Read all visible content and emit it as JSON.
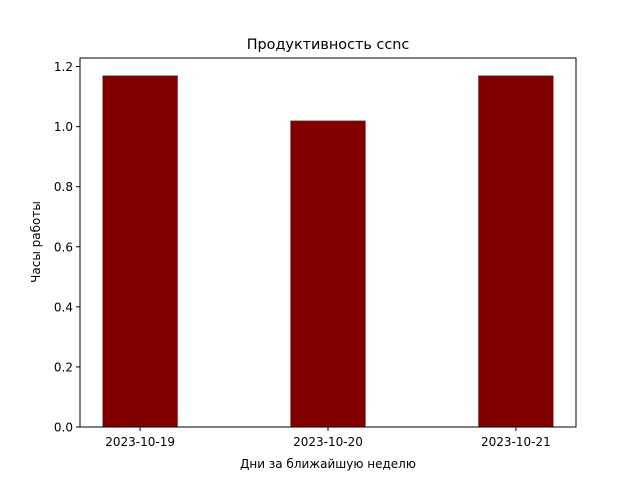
{
  "chart_data": {
    "type": "bar",
    "title": "Продуктивность ccnc",
    "xlabel": "Дни за ближайшую неделю",
    "ylabel": "Часы работы",
    "categories": [
      "2023-10-19",
      "2023-10-20",
      "2023-10-21"
    ],
    "values": [
      1.17,
      1.02,
      1.17
    ],
    "ylim": [
      0,
      1.2285
    ],
    "yticks": [
      0.0,
      0.2,
      0.4,
      0.6,
      0.8,
      1.0,
      1.2
    ],
    "ytick_labels": [
      "0.0",
      "0.2",
      "0.4",
      "0.6",
      "0.8",
      "1.0",
      "1.2"
    ],
    "bar_color": "#800000",
    "grid": false,
    "legend": "none"
  }
}
